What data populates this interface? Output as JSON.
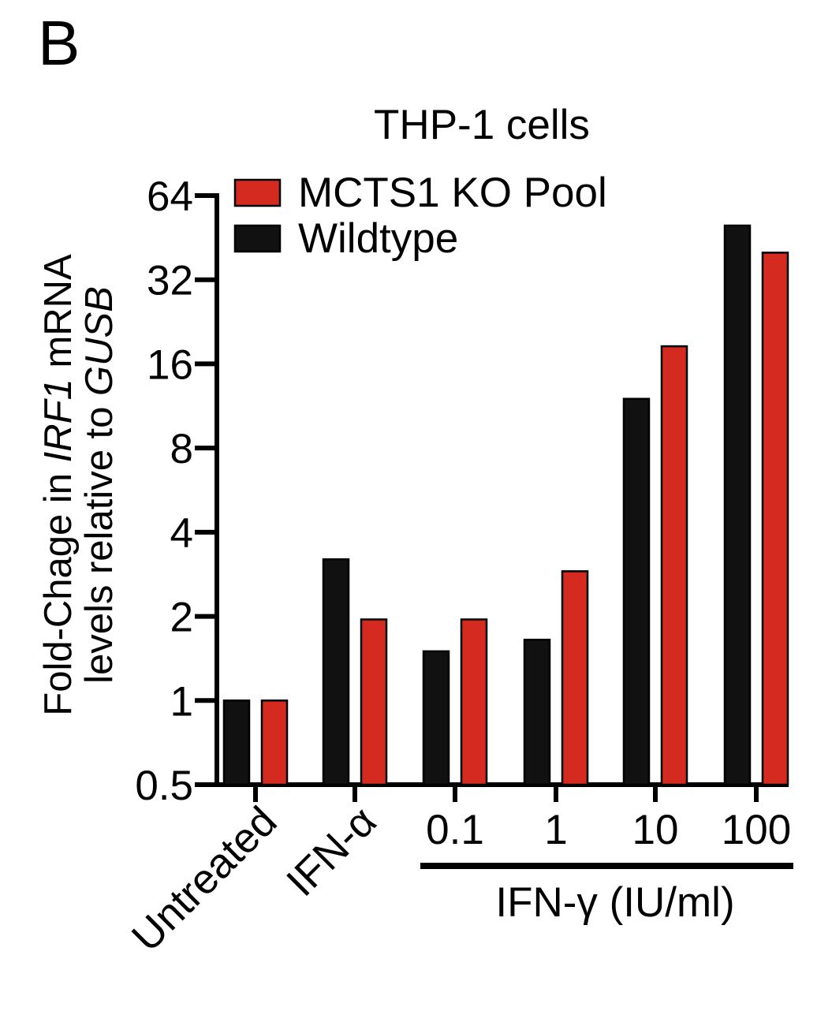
{
  "panel_label": "B",
  "chart_data": {
    "type": "bar",
    "title": "THP-1 cells",
    "ylabel": {
      "parts": [
        {
          "text": "Fold-Chage in ",
          "italic": false
        },
        {
          "text": "IRF1",
          "italic": true
        },
        {
          "text": " mRNA",
          "italic": false
        }
      ],
      "parts2": [
        {
          "text": "levels relative to ",
          "italic": false
        },
        {
          "text": "GUSB",
          "italic": true
        }
      ]
    },
    "yscale": "log2",
    "ylim": [
      0.5,
      64
    ],
    "yticks": [
      0.5,
      1,
      2,
      4,
      8,
      16,
      32,
      64
    ],
    "ytick_labels": [
      "0.5",
      "1",
      "2",
      "4",
      "8",
      "16",
      "32",
      "64"
    ],
    "categories": [
      "Untreated",
      "IFN-α",
      "0.1",
      "1",
      "10",
      "100"
    ],
    "rotated_categories": [
      0,
      1
    ],
    "group_label": {
      "text": "IFN-γ  (IU/ml)",
      "from": 2,
      "to": 5
    },
    "legend": {
      "position": "top-left",
      "order": [
        "MCTS1 KO Pool",
        "Wildtype"
      ]
    },
    "series": [
      {
        "name": "Wildtype",
        "color": "#111111",
        "values": [
          1.0,
          3.2,
          1.5,
          1.65,
          12.0,
          50.0
        ]
      },
      {
        "name": "MCTS1 KO Pool",
        "color": "#d42a1f",
        "values": [
          1.0,
          1.95,
          1.95,
          2.9,
          18.5,
          40.0
        ]
      }
    ]
  }
}
